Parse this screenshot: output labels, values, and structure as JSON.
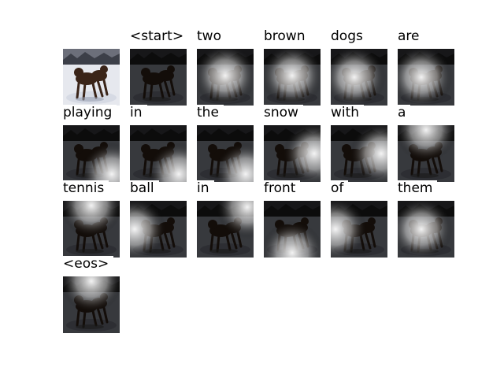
{
  "figure": {
    "kind": "image-caption attention visualization",
    "original_image": "photo of two brown dogs playing in the snow",
    "tokens": [
      {
        "word": "",
        "focus": null
      },
      {
        "word": "<start>",
        "focus": "dim"
      },
      {
        "word": "two",
        "focus": "center"
      },
      {
        "word": "brown",
        "focus": "center"
      },
      {
        "word": "dogs",
        "focus": "center-left"
      },
      {
        "word": "are",
        "focus": "center-left"
      },
      {
        "word": "playing",
        "focus": "bottom-right"
      },
      {
        "word": "in",
        "focus": "bottom-right"
      },
      {
        "word": "the",
        "focus": "bottom-right"
      },
      {
        "word": "snow",
        "focus": "right"
      },
      {
        "word": "with",
        "focus": "right"
      },
      {
        "word": "a",
        "focus": "top"
      },
      {
        "word": "tennis",
        "focus": "top"
      },
      {
        "word": "ball",
        "focus": "left"
      },
      {
        "word": "in",
        "focus": "top-right"
      },
      {
        "word": "front",
        "focus": "bottom-center"
      },
      {
        "word": "of",
        "focus": "left"
      },
      {
        "word": "them",
        "focus": "center-left"
      },
      {
        "word": "<eos>",
        "focus": "top"
      }
    ]
  },
  "colors": {
    "snow": "#e6e8ee",
    "dog": "#3a2418",
    "background": "#ffffff"
  }
}
